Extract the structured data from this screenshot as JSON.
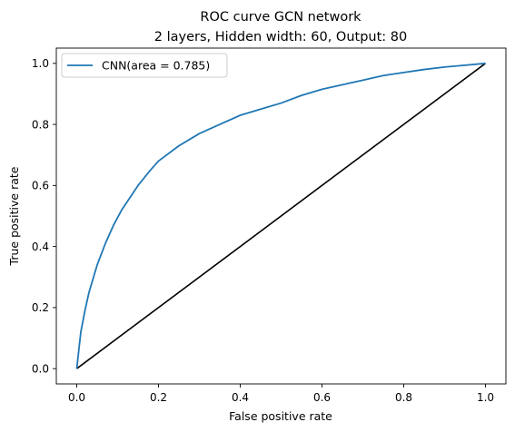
{
  "chart_data": {
    "type": "line",
    "title_line1": "ROC curve GCN network",
    "title_line2": "2 layers, Hidden width: 60, Output: 80",
    "xlabel": "False positive rate",
    "ylabel": "True positive rate",
    "xlim": [
      -0.05,
      1.05
    ],
    "ylim": [
      -0.05,
      1.05
    ],
    "xticks": [
      0.0,
      0.2,
      0.4,
      0.6,
      0.8,
      1.0
    ],
    "yticks": [
      0.0,
      0.2,
      0.4,
      0.6,
      0.8,
      1.0
    ],
    "xtick_labels": [
      "0.0",
      "0.2",
      "0.4",
      "0.6",
      "0.8",
      "1.0"
    ],
    "ytick_labels": [
      "0.0",
      "0.2",
      "0.4",
      "0.6",
      "0.8",
      "1.0"
    ],
    "legend_position": "top-left",
    "series": [
      {
        "name": "CNN(area = 0.785)",
        "color": "#1f77b4",
        "x": [
          0.0,
          0.01,
          0.02,
          0.03,
          0.05,
          0.07,
          0.09,
          0.11,
          0.13,
          0.15,
          0.18,
          0.2,
          0.25,
          0.3,
          0.35,
          0.4,
          0.45,
          0.5,
          0.55,
          0.6,
          0.65,
          0.7,
          0.75,
          0.8,
          0.85,
          0.9,
          0.95,
          1.0
        ],
        "y": [
          0.0,
          0.12,
          0.19,
          0.25,
          0.34,
          0.41,
          0.47,
          0.52,
          0.56,
          0.6,
          0.65,
          0.68,
          0.73,
          0.77,
          0.8,
          0.83,
          0.85,
          0.87,
          0.895,
          0.915,
          0.93,
          0.945,
          0.96,
          0.97,
          0.98,
          0.988,
          0.994,
          1.0
        ]
      },
      {
        "name": "",
        "color": "#000000",
        "x": [
          0.0,
          1.0
        ],
        "y": [
          0.0,
          1.0
        ]
      }
    ]
  }
}
